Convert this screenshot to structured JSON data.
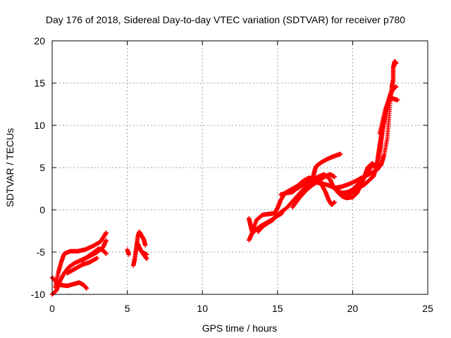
{
  "chart_data": {
    "type": "scatter",
    "title": "Day 176 of 2018, Sidereal Day-to-day VTEC variation (SDTVAR) for receiver p780",
    "xlabel": "GPS time / hours",
    "ylabel": "SDTVAR / TECUs",
    "xlim": [
      0,
      25
    ],
    "ylim": [
      -10,
      20
    ],
    "xticks": [
      "0",
      "5",
      "10",
      "15",
      "20",
      "25"
    ],
    "yticks": [
      "-10",
      "-5",
      "0",
      "5",
      "10",
      "15",
      "20"
    ],
    "grid": true,
    "marker": "plus",
    "color": "#ff0000",
    "series": [
      {
        "tracks": [
          [
            [
              0.0,
              -8.0
            ],
            [
              0.3,
              -8.6
            ],
            [
              0.6,
              -8.9
            ],
            [
              1.0,
              -9.0
            ],
            [
              1.4,
              -8.8
            ],
            [
              1.8,
              -8.6
            ],
            [
              2.1,
              -8.9
            ],
            [
              2.3,
              -9.3
            ]
          ],
          [
            [
              0.0,
              -10.0
            ],
            [
              0.3,
              -9.5
            ],
            [
              0.5,
              -8.5
            ],
            [
              0.8,
              -7.5
            ],
            [
              1.1,
              -6.8
            ],
            [
              1.5,
              -6.3
            ],
            [
              2.0,
              -5.9
            ],
            [
              2.5,
              -5.5
            ],
            [
              3.0,
              -5.0
            ],
            [
              3.4,
              -4.4
            ],
            [
              3.6,
              -3.6
            ]
          ],
          [
            [
              0.2,
              -9.2
            ],
            [
              0.4,
              -7.5
            ],
            [
              0.6,
              -6.2
            ],
            [
              0.8,
              -5.2
            ],
            [
              1.2,
              -4.9
            ],
            [
              1.7,
              -4.9
            ],
            [
              2.2,
              -4.7
            ],
            [
              2.7,
              -4.3
            ],
            [
              3.2,
              -3.8
            ],
            [
              3.5,
              -3.0
            ],
            [
              3.6,
              -2.7
            ]
          ],
          [
            [
              2.0,
              -6.0
            ],
            [
              2.4,
              -5.5
            ],
            [
              2.8,
              -5.0
            ],
            [
              3.1,
              -4.6
            ],
            [
              3.4,
              -4.8
            ],
            [
              3.6,
              -5.2
            ]
          ],
          [
            [
              1.0,
              -7.5
            ],
            [
              1.5,
              -7.0
            ],
            [
              2.0,
              -6.5
            ],
            [
              2.5,
              -6.2
            ],
            [
              3.0,
              -5.7
            ]
          ],
          [
            [
              5.0,
              -4.7
            ],
            [
              5.1,
              -5.3
            ]
          ],
          [
            [
              5.4,
              -6.6
            ],
            [
              5.5,
              -5.8
            ],
            [
              5.6,
              -4.5
            ],
            [
              5.7,
              -3.2
            ],
            [
              5.8,
              -2.6
            ],
            [
              5.9,
              -2.9
            ],
            [
              6.1,
              -3.5
            ],
            [
              6.2,
              -4.2
            ]
          ],
          [
            [
              5.7,
              -4.0
            ],
            [
              5.9,
              -4.8
            ],
            [
              6.1,
              -5.3
            ],
            [
              6.3,
              -5.8
            ]
          ],
          [
            [
              6.0,
              -5.0
            ],
            [
              6.3,
              -5.3
            ]
          ],
          [
            [
              13.1,
              -1.0
            ],
            [
              13.2,
              -1.8
            ],
            [
              13.3,
              -2.5
            ],
            [
              13.4,
              -2.0
            ]
          ],
          [
            [
              13.1,
              -3.6
            ],
            [
              13.3,
              -2.8
            ],
            [
              13.6,
              -2.3
            ],
            [
              13.9,
              -1.9
            ],
            [
              14.2,
              -1.6
            ],
            [
              14.6,
              -1.2
            ],
            [
              15.0,
              -0.7
            ],
            [
              15.3,
              -0.4
            ]
          ],
          [
            [
              13.3,
              -2.7
            ],
            [
              13.6,
              -1.2
            ],
            [
              14.0,
              -0.6
            ],
            [
              14.4,
              -0.5
            ],
            [
              14.8,
              -0.4
            ],
            [
              15.0,
              0.2
            ],
            [
              15.2,
              1.1
            ],
            [
              15.5,
              2.0
            ],
            [
              15.9,
              2.4
            ],
            [
              16.3,
              2.8
            ],
            [
              16.7,
              3.4
            ],
            [
              17.1,
              3.8
            ],
            [
              17.4,
              3.6
            ],
            [
              17.7,
              3.9
            ],
            [
              18.1,
              4.2
            ],
            [
              18.5,
              3.6
            ],
            [
              18.7,
              2.8
            ],
            [
              18.9,
              2.3
            ],
            [
              19.3,
              2.0
            ],
            [
              19.7,
              2.1
            ],
            [
              20.0,
              2.4
            ],
            [
              20.4,
              3.1
            ],
            [
              20.7,
              3.8
            ],
            [
              21.0,
              4.5
            ],
            [
              21.3,
              5.2
            ],
            [
              21.6,
              5.4
            ],
            [
              21.8,
              5.3
            ]
          ],
          [
            [
              13.7,
              -2.6
            ],
            [
              14.0,
              -2.0
            ],
            [
              14.4,
              -1.5
            ],
            [
              14.7,
              -1.2
            ]
          ],
          [
            [
              14.8,
              -0.9
            ],
            [
              15.2,
              -0.3
            ],
            [
              15.6,
              0.2
            ],
            [
              16.0,
              1.0
            ],
            [
              16.4,
              1.8
            ],
            [
              16.8,
              2.6
            ],
            [
              17.2,
              3.3
            ],
            [
              17.4,
              4.1
            ],
            [
              17.5,
              4.8
            ],
            [
              17.6,
              5.2
            ],
            [
              17.9,
              5.6
            ],
            [
              18.3,
              6.0
            ],
            [
              18.7,
              6.3
            ],
            [
              19.0,
              6.5
            ],
            [
              19.2,
              6.6
            ]
          ],
          [
            [
              15.2,
              1.8
            ],
            [
              15.6,
              2.0
            ],
            [
              16.0,
              2.1
            ],
            [
              16.4,
              2.7
            ],
            [
              16.8,
              3.3
            ],
            [
              17.2,
              3.6
            ],
            [
              17.6,
              3.4
            ],
            [
              18.0,
              3.1
            ],
            [
              18.4,
              2.9
            ],
            [
              18.8,
              2.6
            ],
            [
              19.2,
              2.7
            ],
            [
              19.7,
              3.0
            ],
            [
              20.2,
              3.4
            ],
            [
              20.6,
              3.8
            ],
            [
              21.1,
              4.2
            ],
            [
              21.5,
              4.6
            ],
            [
              21.9,
              5.3
            ],
            [
              22.1,
              6.5
            ],
            [
              22.3,
              8.4
            ],
            [
              22.4,
              10.5
            ],
            [
              22.5,
              12.8
            ],
            [
              22.6,
              14.5
            ],
            [
              22.7,
              15.4
            ],
            [
              22.7,
              16.8
            ],
            [
              22.8,
              17.6
            ],
            [
              22.9,
              17.3
            ]
          ],
          [
            [
              16.0,
              0.3
            ],
            [
              16.5,
              1.5
            ],
            [
              16.9,
              2.3
            ],
            [
              17.3,
              2.9
            ],
            [
              17.8,
              3.5
            ],
            [
              18.2,
              4.0
            ],
            [
              18.5,
              4.2
            ],
            [
              18.8,
              3.9
            ]
          ],
          [
            [
              16.3,
              2.5
            ],
            [
              16.7,
              3.0
            ],
            [
              17.1,
              3.3
            ],
            [
              17.5,
              3.3
            ],
            [
              17.9,
              3.1
            ],
            [
              18.2,
              2.1
            ],
            [
              18.4,
              1.2
            ],
            [
              18.6,
              0.6
            ],
            [
              18.8,
              0.9
            ]
          ],
          [
            [
              19.0,
              2.1
            ],
            [
              19.3,
              1.6
            ],
            [
              19.6,
              1.4
            ],
            [
              20.0,
              1.5
            ],
            [
              20.3,
              2.0
            ],
            [
              20.6,
              3.1
            ],
            [
              20.8,
              4.0
            ],
            [
              21.0,
              5.0
            ],
            [
              21.3,
              5.5
            ],
            [
              21.5,
              5.2
            ],
            [
              21.7,
              4.8
            ]
          ],
          [
            [
              19.6,
              1.8
            ],
            [
              20.0,
              2.1
            ],
            [
              20.4,
              2.6
            ],
            [
              20.8,
              3.0
            ],
            [
              21.1,
              3.5
            ],
            [
              21.4,
              4.0
            ],
            [
              21.6,
              5.2
            ],
            [
              21.7,
              6.4
            ],
            [
              21.8,
              7.6
            ],
            [
              21.9,
              8.7
            ],
            [
              22.0,
              9.7
            ],
            [
              22.1,
              10.5
            ],
            [
              22.2,
              11.5
            ],
            [
              22.3,
              12.4
            ],
            [
              22.4,
              13.0
            ],
            [
              22.5,
              13.6
            ],
            [
              22.6,
              14.0
            ],
            [
              22.7,
              14.3
            ],
            [
              22.9,
              14.6
            ]
          ],
          [
            [
              21.8,
              9.0
            ],
            [
              22.0,
              10.5
            ],
            [
              22.2,
              12.0
            ],
            [
              22.4,
              12.8
            ],
            [
              22.6,
              13.2
            ],
            [
              22.8,
              13.1
            ],
            [
              23.0,
              13.0
            ]
          ],
          [
            [
              21.7,
              5.0
            ],
            [
              21.8,
              6.8
            ],
            [
              21.9,
              8.0
            ],
            [
              22.0,
              9.5
            ],
            [
              22.1,
              10.8
            ]
          ]
        ]
      }
    ]
  }
}
